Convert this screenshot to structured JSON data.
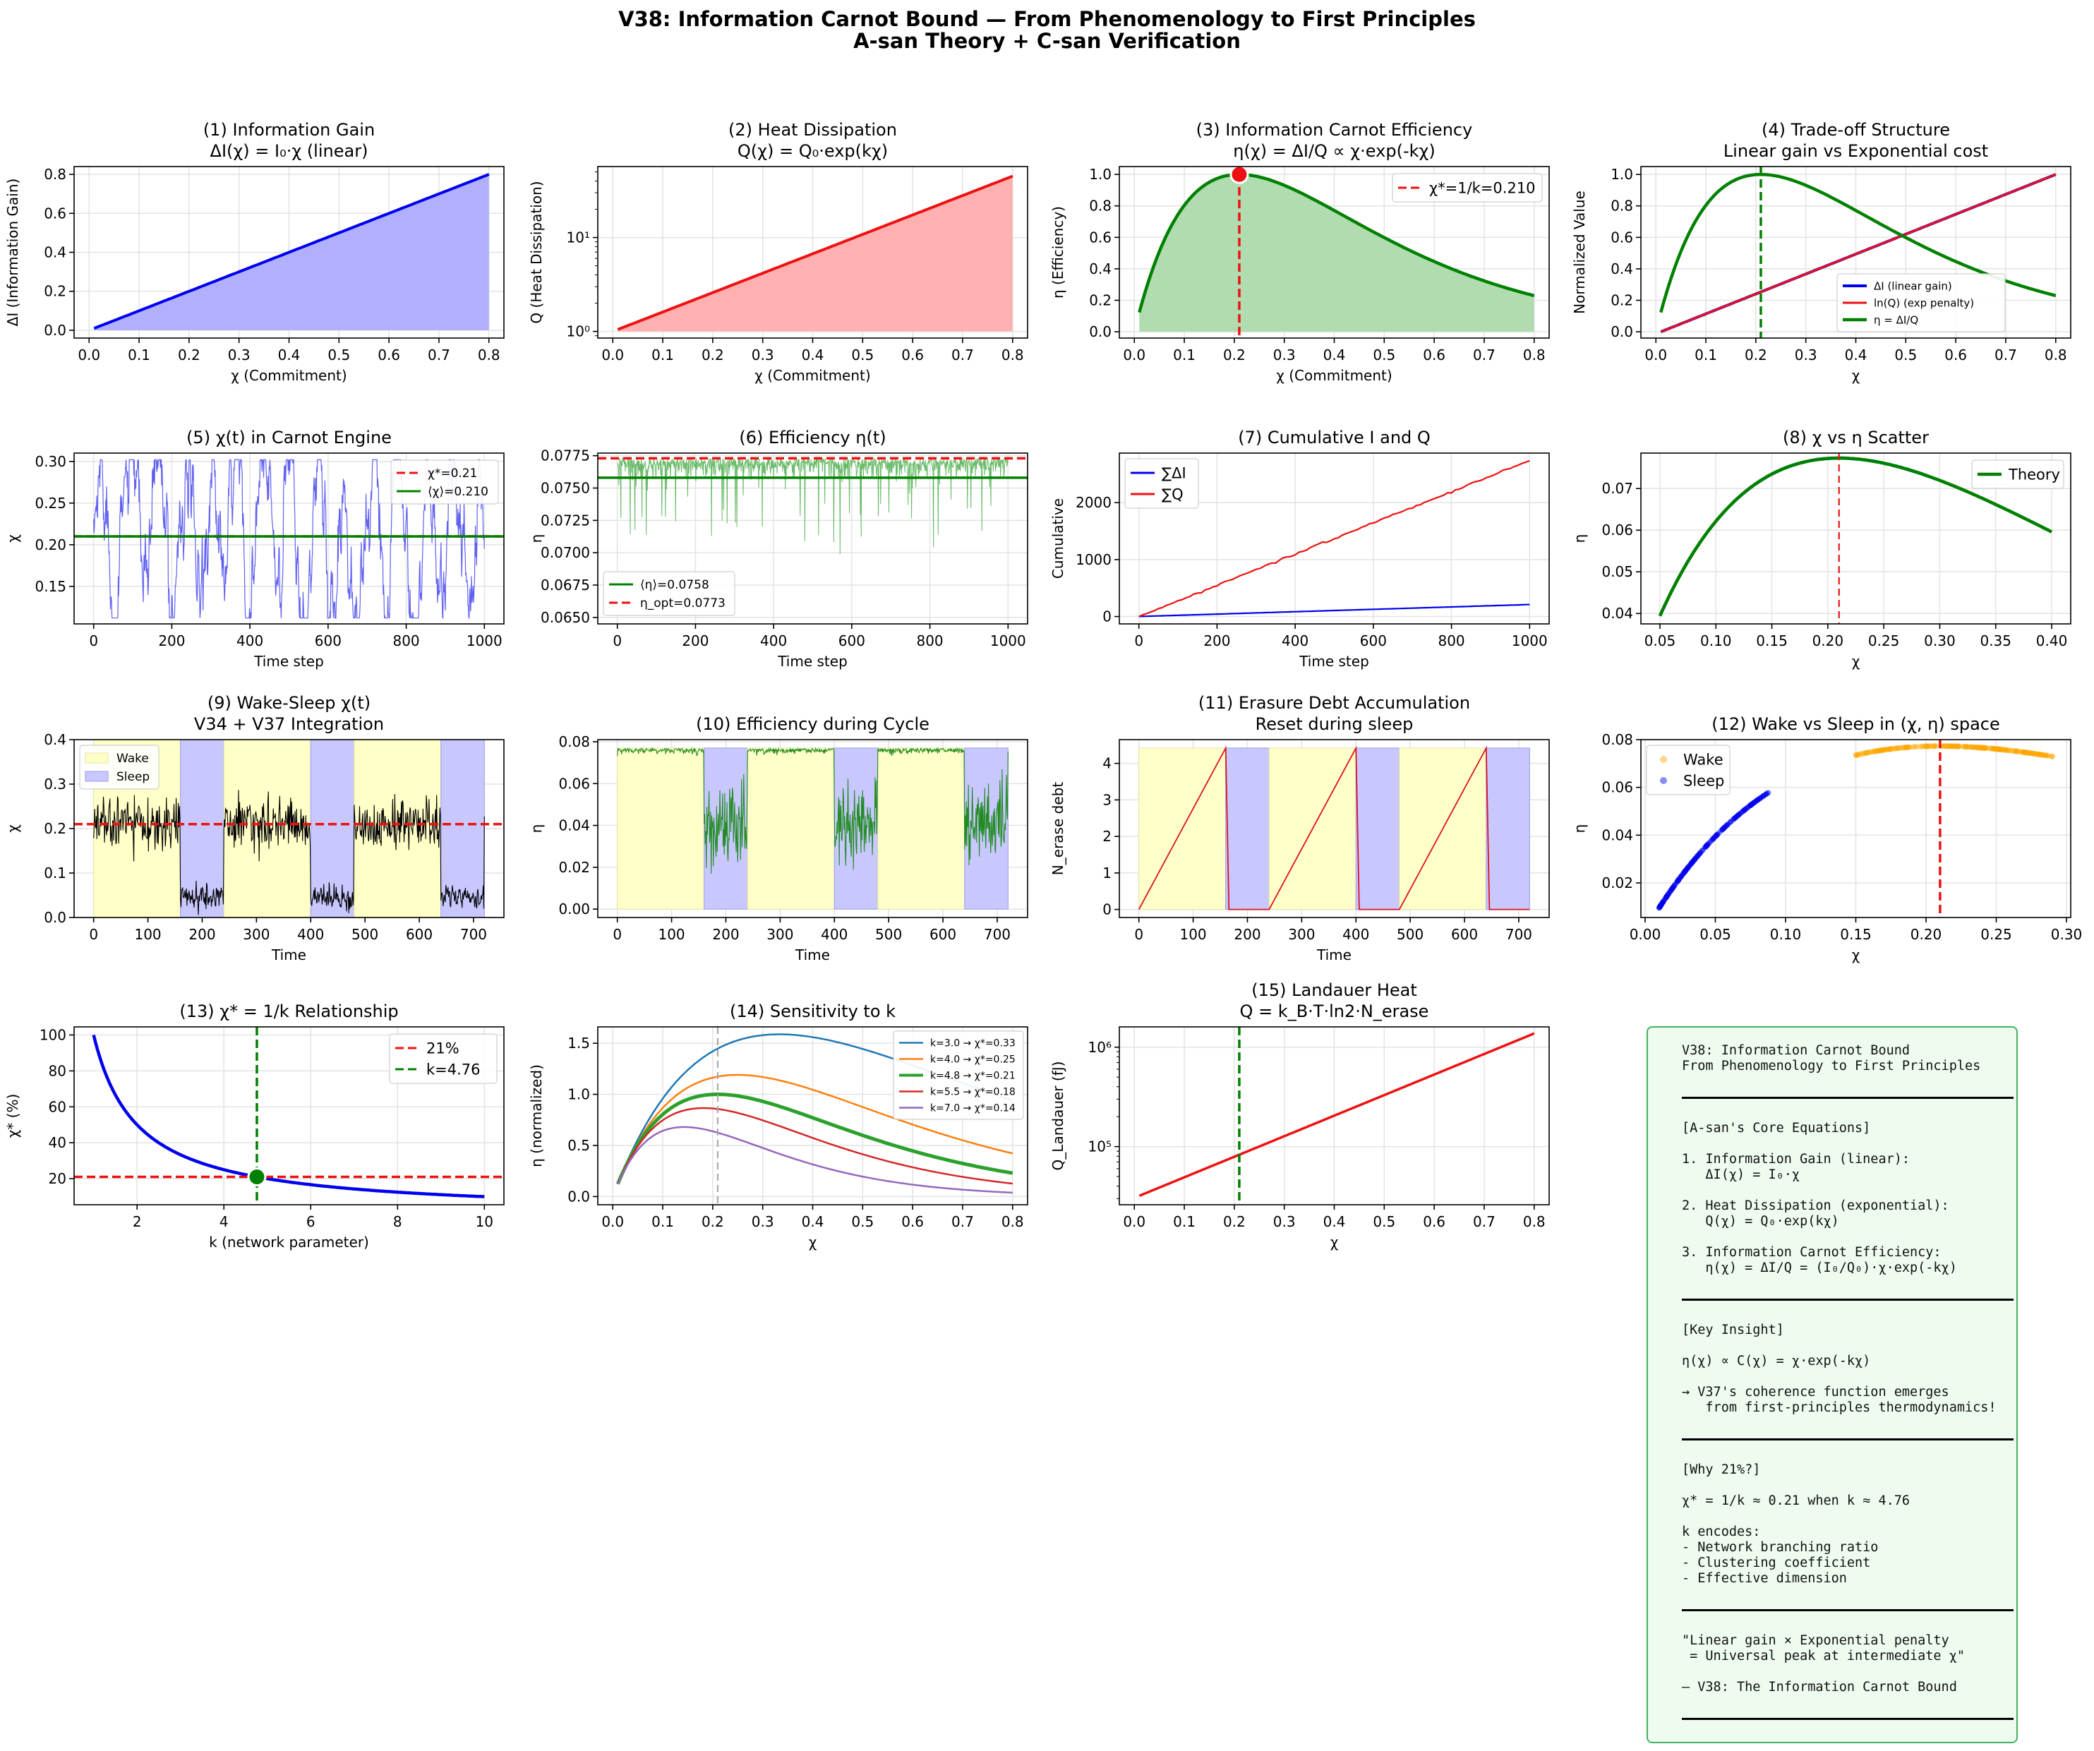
{
  "title_line1": "V38: Information Carnot Bound — From Phenomenology to First Principles",
  "title_line2": "A-san Theory + C-san Verification",
  "chart_data": [
    {
      "id": "p1",
      "type": "area",
      "title": [
        "(1) Information Gain",
        "ΔI(χ) = I₀·χ (linear)"
      ],
      "xlabel": "χ (Commitment)",
      "ylabel": "ΔI (Information Gain)",
      "xlim": [
        -0.03,
        0.83
      ],
      "ylim": [
        -0.04,
        0.84
      ],
      "xticks": [
        0,
        0.1,
        0.2,
        0.3,
        0.4,
        0.5,
        0.6,
        0.7,
        0.8
      ],
      "yticks": [
        0,
        0.2,
        0.4,
        0.6,
        0.8
      ],
      "xtick_labels": [
        "0.0",
        "0.1",
        "0.2",
        "0.3",
        "0.4",
        "0.5",
        "0.6",
        "0.7",
        "0.8"
      ],
      "ytick_labels": [
        "0.0",
        "0.2",
        "0.4",
        "0.6",
        "0.8"
      ],
      "series": [
        {
          "name": "ΔI",
          "fn": "linear",
          "domain": [
            0.01,
            0.8
          ],
          "color": "#0000ee",
          "fill": "#b0b0ff",
          "width": 4
        }
      ]
    },
    {
      "id": "p2",
      "type": "area",
      "ylog": true,
      "title": [
        "(2) Heat Dissipation",
        "Q(χ) = Q₀·exp(kχ)"
      ],
      "xlabel": "χ (Commitment)",
      "ylabel": "Q (Heat Dissipation)",
      "xlim": [
        -0.03,
        0.83
      ],
      "ylim": [
        0.85,
        57
      ],
      "xticks": [
        0,
        0.1,
        0.2,
        0.3,
        0.4,
        0.5,
        0.6,
        0.7,
        0.8
      ],
      "yticks": [
        1,
        10
      ],
      "xtick_labels": [
        "0.0",
        "0.1",
        "0.2",
        "0.3",
        "0.4",
        "0.5",
        "0.6",
        "0.7",
        "0.8"
      ],
      "ytick_labels": [
        "10⁰",
        "10¹"
      ],
      "series": [
        {
          "name": "Q",
          "fn": "exp",
          "k": 4.76,
          "domain": [
            0.01,
            0.8
          ],
          "color": "#ee1111",
          "fill": "#ffb0b0",
          "width": 4
        }
      ]
    },
    {
      "id": "p3",
      "type": "area",
      "title": [
        "(3) Information Carnot Efficiency",
        "η(χ) = ΔI/Q ∝ χ·exp(-kχ)"
      ],
      "xlabel": "χ (Commitment)",
      "ylabel": "η (Efficiency)",
      "xlim": [
        -0.03,
        0.83
      ],
      "ylim": [
        -0.04,
        1.05
      ],
      "xticks": [
        0,
        0.1,
        0.2,
        0.3,
        0.4,
        0.5,
        0.6,
        0.7,
        0.8
      ],
      "yticks": [
        0,
        0.2,
        0.4,
        0.6,
        0.8,
        1.0
      ],
      "xtick_labels": [
        "0.0",
        "0.1",
        "0.2",
        "0.3",
        "0.4",
        "0.5",
        "0.6",
        "0.7",
        "0.8"
      ],
      "ytick_labels": [
        "0.0",
        "0.2",
        "0.4",
        "0.6",
        "0.8",
        "1.0"
      ],
      "series": [
        {
          "name": "η",
          "fn": "eta",
          "k": 4.76,
          "domain": [
            0.01,
            0.8
          ],
          "color": "#008000",
          "fill": "#b0dcb0",
          "width": 4.5
        }
      ],
      "vline": {
        "x": 0.21,
        "color": "#ee1111",
        "dash": "12,6",
        "ymax": 1.0
      },
      "marker": {
        "x": 0.21,
        "y": 1.0,
        "color": "#ee1111"
      },
      "legend": [
        "χ*=1/k=0.210"
      ]
    },
    {
      "id": "p4",
      "type": "line",
      "title": [
        "(4) Trade-off Structure",
        "Linear gain vs Exponential cost"
      ],
      "xlabel": "χ",
      "ylabel": "Normalized Value",
      "xlim": [
        -0.03,
        0.83
      ],
      "ylim": [
        -0.04,
        1.05
      ],
      "xticks": [
        0,
        0.1,
        0.2,
        0.3,
        0.4,
        0.5,
        0.6,
        0.7,
        0.8
      ],
      "yticks": [
        0,
        0.2,
        0.4,
        0.6,
        0.8,
        1.0
      ],
      "xtick_labels": [
        "0.0",
        "0.1",
        "0.2",
        "0.3",
        "0.4",
        "0.5",
        "0.6",
        "0.7",
        "0.8"
      ],
      "ytick_labels": [
        "0.0",
        "0.2",
        "0.4",
        "0.6",
        "0.8",
        "1.0"
      ],
      "series": [
        {
          "name": "ΔI (linear gain)",
          "fn": "norm_lin",
          "domain": [
            0.01,
            0.8
          ],
          "color": "#0000ee",
          "width": 4
        },
        {
          "name": "ln(Q) (exp penalty)",
          "fn": "norm_lin",
          "domain": [
            0.01,
            0.8
          ],
          "color": "#ee1111",
          "width": 3
        },
        {
          "name": "η = ΔI/Q",
          "fn": "eta",
          "k": 4.76,
          "domain": [
            0.01,
            0.8
          ],
          "color": "#008000",
          "width": 4.5
        }
      ],
      "vline": {
        "x": 0.21,
        "color": "#008000",
        "dash": "12,6"
      },
      "legend": [
        "ΔI (linear gain)",
        "ln(Q) (exp penalty)",
        "η = ΔI/Q"
      ]
    },
    {
      "id": "p5",
      "type": "line",
      "title": [
        "(5) χ(t) in Carnot Engine"
      ],
      "xlabel": "Time step",
      "ylabel": "χ",
      "xlim": [
        -50,
        1050
      ],
      "ylim": [
        0.105,
        0.31
      ],
      "xticks": [
        0,
        200,
        400,
        600,
        800,
        1000
      ],
      "yticks": [
        0.15,
        0.2,
        0.25,
        0.3
      ],
      "xtick_labels": [
        "0",
        "200",
        "400",
        "600",
        "800",
        "1000"
      ],
      "ytick_labels": [
        "0.15",
        "0.20",
        "0.25",
        "0.30"
      ],
      "hlines": [
        {
          "y": 0.21,
          "color": "#ee1111",
          "dash": "12,6"
        },
        {
          "y": 0.21,
          "color": "#008000"
        }
      ],
      "legend": [
        "χ*=0.21",
        "⟨χ⟩=0.210"
      ],
      "series": [
        {
          "name": "χ(t)",
          "gen": "chi_t",
          "color": "#3333ee"
        }
      ]
    },
    {
      "id": "p6",
      "type": "line",
      "title": [
        "(6) Efficiency η(t)"
      ],
      "xlabel": "Time step",
      "ylabel": "η",
      "xlim": [
        -50,
        1050
      ],
      "ylim": [
        0.0645,
        0.0777
      ],
      "xticks": [
        0,
        200,
        400,
        600,
        800,
        1000
      ],
      "yticks": [
        0.065,
        0.0675,
        0.07,
        0.0725,
        0.075,
        0.0775
      ],
      "xtick_labels": [
        "0",
        "200",
        "400",
        "600",
        "800",
        "1000"
      ],
      "ytick_labels": [
        "0.0650",
        "0.0675",
        "0.0700",
        "0.0725",
        "0.0750",
        "0.0775"
      ],
      "hlines": [
        {
          "y": 0.0758,
          "color": "#008000"
        },
        {
          "y": 0.0773,
          "color": "#ee1111",
          "dash": "12,6"
        }
      ],
      "legend": [
        "⟨η⟩=0.0758",
        "η_opt=0.0773"
      ],
      "series": [
        {
          "name": "η(t)",
          "gen": "eta_t",
          "color": "#33a033"
        }
      ]
    },
    {
      "id": "p7",
      "type": "line",
      "title": [
        "(7) Cumulative I and Q"
      ],
      "xlabel": "Time step",
      "ylabel": "Cumulative",
      "xlim": [
        -50,
        1050
      ],
      "ylim": [
        -130,
        2870
      ],
      "xticks": [
        0,
        200,
        400,
        600,
        800,
        1000
      ],
      "yticks": [
        0,
        1000,
        2000
      ],
      "xtick_labels": [
        "0",
        "200",
        "400",
        "600",
        "800",
        "1000"
      ],
      "ytick_labels": [
        "0",
        "1000",
        "2000"
      ],
      "series": [
        {
          "name": "∑ΔI",
          "end": 210,
          "color": "#0000ee"
        },
        {
          "name": "∑Q",
          "end": 2740,
          "color": "#ee1111"
        }
      ],
      "legend": [
        "∑ΔI",
        "∑Q"
      ]
    },
    {
      "id": "p8",
      "type": "scatter",
      "title": [
        "(8) χ vs η Scatter"
      ],
      "xlabel": "χ",
      "ylabel": "η",
      "xlim": [
        0.033,
        0.417
      ],
      "ylim": [
        0.0375,
        0.0785
      ],
      "xticks": [
        0.05,
        0.1,
        0.15,
        0.2,
        0.25,
        0.3,
        0.35,
        0.4
      ],
      "yticks": [
        0.04,
        0.05,
        0.06,
        0.07
      ],
      "xtick_labels": [
        "0.05",
        "0.10",
        "0.15",
        "0.20",
        "0.25",
        "0.30",
        "0.35",
        "0.40"
      ],
      "ytick_labels": [
        "0.04",
        "0.05",
        "0.06",
        "0.07"
      ],
      "series": [
        {
          "name": "Theory",
          "fn": "eta_scaled",
          "k": 4.76,
          "amp": 0.0773,
          "domain": [
            0.05,
            0.4
          ],
          "color": "#008000",
          "width": 4.5
        }
      ],
      "vline": {
        "x": 0.21,
        "color": "#ee1111",
        "dash": "10,6"
      },
      "legend": [
        "Theory"
      ]
    },
    {
      "id": "p9",
      "type": "line",
      "title": [
        "(9) Wake-Sleep χ(t)",
        "V34 + V37 Integration"
      ],
      "xlabel": "Time",
      "ylabel": "χ",
      "xlim": [
        -36,
        756
      ],
      "ylim": [
        0,
        0.4
      ],
      "xticks": [
        0,
        100,
        200,
        300,
        400,
        500,
        600,
        700
      ],
      "yticks": [
        0,
        0.1,
        0.2,
        0.3,
        0.4
      ],
      "xtick_labels": [
        "0",
        "100",
        "200",
        "300",
        "400",
        "500",
        "600",
        "700"
      ],
      "ytick_labels": [
        "0.0",
        "0.1",
        "0.2",
        "0.3",
        "0.4"
      ],
      "bands": [
        [
          0,
          160,
          "wake"
        ],
        [
          160,
          240,
          "sleep"
        ],
        [
          240,
          400,
          "wake"
        ],
        [
          400,
          480,
          "sleep"
        ],
        [
          480,
          640,
          "wake"
        ],
        [
          640,
          720,
          "sleep"
        ]
      ],
      "hlines": [
        {
          "y": 0.21,
          "color": "#ee1111",
          "dash": "12,6"
        }
      ],
      "legend": [
        "Wake",
        "Sleep"
      ]
    },
    {
      "id": "p10",
      "type": "line",
      "title": [
        "(10) Efficiency during Cycle"
      ],
      "xlabel": "Time",
      "ylabel": "η",
      "xlim": [
        -36,
        756
      ],
      "ylim": [
        -0.004,
        0.081
      ],
      "xticks": [
        0,
        100,
        200,
        300,
        400,
        500,
        600,
        700
      ],
      "yticks": [
        0,
        0.02,
        0.04,
        0.06,
        0.08
      ],
      "xtick_labels": [
        "0",
        "100",
        "200",
        "300",
        "400",
        "500",
        "600",
        "700"
      ],
      "ytick_labels": [
        "0.00",
        "0.02",
        "0.04",
        "0.06",
        "0.08"
      ],
      "bands": [
        [
          0,
          160,
          "wake"
        ],
        [
          160,
          240,
          "sleep"
        ],
        [
          240,
          400,
          "wake"
        ],
        [
          400,
          480,
          "sleep"
        ],
        [
          480,
          640,
          "wake"
        ],
        [
          640,
          720,
          "sleep"
        ]
      ]
    },
    {
      "id": "p11",
      "type": "line",
      "title": [
        "(11) Erasure Debt Accumulation",
        "Reset during sleep"
      ],
      "xlabel": "Time",
      "ylabel": "N_erase debt",
      "xlim": [
        -36,
        756
      ],
      "ylim": [
        -0.22,
        4.65
      ],
      "xticks": [
        0,
        100,
        200,
        300,
        400,
        500,
        600,
        700
      ],
      "yticks": [
        0,
        1,
        2,
        3,
        4
      ],
      "xtick_labels": [
        "0",
        "100",
        "200",
        "300",
        "400",
        "500",
        "600",
        "700"
      ],
      "ytick_labels": [
        "0",
        "1",
        "2",
        "3",
        "4"
      ],
      "bands": [
        [
          0,
          160,
          "wake",
          4.42
        ],
        [
          160,
          240,
          "sleep",
          4.42
        ],
        [
          240,
          400,
          "wake",
          4.42
        ],
        [
          400,
          480,
          "sleep",
          4.42
        ],
        [
          480,
          640,
          "wake",
          4.42
        ],
        [
          640,
          720,
          "sleep",
          4.42
        ]
      ]
    },
    {
      "id": "p12",
      "type": "scatter",
      "title": [
        "(12) Wake vs Sleep in (χ, η) space"
      ],
      "xlabel": "χ",
      "ylabel": "η",
      "xlim": [
        -0.003,
        0.303
      ],
      "ylim": [
        0.0055,
        0.08
      ],
      "xticks": [
        0,
        0.05,
        0.1,
        0.15,
        0.2,
        0.25,
        0.3
      ],
      "yticks": [
        0.02,
        0.04,
        0.06,
        0.08
      ],
      "xtick_labels": [
        "0.00",
        "0.05",
        "0.10",
        "0.15",
        "0.20",
        "0.25",
        "0.30"
      ],
      "ytick_labels": [
        "0.02",
        "0.04",
        "0.06",
        "0.08"
      ],
      "vline": {
        "x": 0.21,
        "color": "#ee1111",
        "dash": "12,6"
      },
      "legend": [
        "Wake",
        "Sleep"
      ]
    },
    {
      "id": "p13",
      "type": "line",
      "title": [
        "(13) χ* = 1/k Relationship"
      ],
      "xlabel": "k (network parameter)",
      "ylabel": "χ* (%)",
      "xlim": [
        0.55,
        10.45
      ],
      "ylim": [
        5.5,
        104.5
      ],
      "xticks": [
        2,
        4,
        6,
        8,
        10
      ],
      "yticks": [
        20,
        40,
        60,
        80,
        100
      ],
      "xtick_labels": [
        "2",
        "4",
        "6",
        "8",
        "10"
      ],
      "ytick_labels": [
        "20",
        "40",
        "60",
        "80",
        "100"
      ],
      "hlines": [
        {
          "y": 21,
          "color": "#ee1111",
          "dash": "12,6"
        }
      ],
      "vline": {
        "x": 4.76,
        "color": "#008000",
        "dash": "12,6"
      },
      "marker": {
        "x": 4.76,
        "y": 21,
        "color": "#008000"
      },
      "legend": [
        "21%",
        "k=4.76"
      ]
    },
    {
      "id": "p14",
      "type": "line",
      "title": [
        "(14) Sensitivity to k"
      ],
      "xlabel": "χ",
      "ylabel": "η (normalized)",
      "xlim": [
        -0.03,
        0.83
      ],
      "ylim": [
        -0.08,
        1.66
      ],
      "xticks": [
        0,
        0.1,
        0.2,
        0.3,
        0.4,
        0.5,
        0.6,
        0.7,
        0.8
      ],
      "yticks": [
        0,
        0.5,
        1.0,
        1.5
      ],
      "xtick_labels": [
        "0.0",
        "0.1",
        "0.2",
        "0.3",
        "0.4",
        "0.5",
        "0.6",
        "0.7",
        "0.8"
      ],
      "ytick_labels": [
        "0.0",
        "0.5",
        "1.0",
        "1.5"
      ],
      "vline": {
        "x": 0.21,
        "color": "#aaaaaa",
        "dash": "10,6"
      },
      "series": [
        {
          "name": "k=3.0 → χ*=0.33",
          "k": 3.0,
          "color": "#1f77b4",
          "width": 2.5
        },
        {
          "name": "k=4.0 → χ*=0.25",
          "k": 4.0,
          "color": "#ff7f0e",
          "width": 2.5
        },
        {
          "name": "k=4.8 → χ*=0.21",
          "k": 4.76,
          "color": "#2ca02c",
          "width": 5
        },
        {
          "name": "k=5.5 → χ*=0.18",
          "k": 5.5,
          "color": "#d62728",
          "width": 2.5
        },
        {
          "name": "k=7.0 → χ*=0.14",
          "k": 7.0,
          "color": "#9467bd",
          "width": 2.5
        }
      ]
    },
    {
      "id": "p15",
      "type": "line",
      "ylog": true,
      "title": [
        "(15) Landauer Heat",
        "Q = k_B·T·ln2·N_erase"
      ],
      "xlabel": "χ",
      "ylabel": "Q_Landauer (fJ)",
      "xlim": [
        -0.03,
        0.83
      ],
      "ylim": [
        26000,
        1600000
      ],
      "xticks": [
        0,
        0.1,
        0.2,
        0.3,
        0.4,
        0.5,
        0.6,
        0.7,
        0.8
      ],
      "yticks": [
        100000,
        1000000
      ],
      "xtick_labels": [
        "0.0",
        "0.1",
        "0.2",
        "0.3",
        "0.4",
        "0.5",
        "0.6",
        "0.7",
        "0.8"
      ],
      "ytick_labels": [
        "10⁵",
        "10⁶"
      ],
      "series": [
        {
          "name": "Q_Landauer",
          "fn": "exp",
          "k": 4.76,
          "scale": 30500,
          "domain": [
            0.01,
            0.8
          ],
          "color": "#ee1111",
          "width": 3.5
        }
      ],
      "vline": {
        "x": 0.21,
        "color": "#008000",
        "dash": "12,6"
      }
    }
  ],
  "info_box": [
    {
      "t": "V38: Information Carnot Bound"
    },
    {
      "t": "From Phenomenology to First Principles"
    },
    {
      "t": ""
    },
    {
      "rule": true
    },
    {
      "t": ""
    },
    {
      "t": "[A-san's Core Equations]"
    },
    {
      "t": ""
    },
    {
      "t": "1. Information Gain (linear):"
    },
    {
      "t": "   ΔI(χ) = I₀·χ"
    },
    {
      "t": ""
    },
    {
      "t": "2. Heat Dissipation (exponential):"
    },
    {
      "t": "   Q(χ) = Q₀·exp(kχ)"
    },
    {
      "t": ""
    },
    {
      "t": "3. Information Carnot Efficiency:"
    },
    {
      "t": "   η(χ) = ΔI/Q = (I₀/Q₀)·χ·exp(-kχ)"
    },
    {
      "t": ""
    },
    {
      "rule": true
    },
    {
      "t": ""
    },
    {
      "t": "[Key Insight]"
    },
    {
      "t": ""
    },
    {
      "t": "η(χ) ∝ C(χ) = χ·exp(-kχ)"
    },
    {
      "t": ""
    },
    {
      "t": "→ V37's coherence function emerges"
    },
    {
      "t": "   from first-principles thermodynamics!"
    },
    {
      "t": ""
    },
    {
      "rule": true
    },
    {
      "t": ""
    },
    {
      "t": "[Why 21%?]"
    },
    {
      "t": ""
    },
    {
      "t": "χ* = 1/k ≈ 0.21 when k ≈ 4.76"
    },
    {
      "t": ""
    },
    {
      "t": "k encodes:"
    },
    {
      "t": "- Network branching ratio"
    },
    {
      "t": "- Clustering coefficient"
    },
    {
      "t": "- Effective dimension"
    },
    {
      "t": ""
    },
    {
      "rule": true
    },
    {
      "t": ""
    },
    {
      "t": "\"Linear gain × Exponential penalty"
    },
    {
      "t": " = Universal peak at intermediate χ\""
    },
    {
      "t": ""
    },
    {
      "t": "— V38: The Information Carnot Bound"
    },
    {
      "t": ""
    },
    {
      "rule": true
    }
  ],
  "colors": {
    "wake_band": "#ffffc8",
    "sleep_band": "#c8c8ff",
    "wake_dot": "#ffa500",
    "sleep_dot": "#0000ee"
  }
}
